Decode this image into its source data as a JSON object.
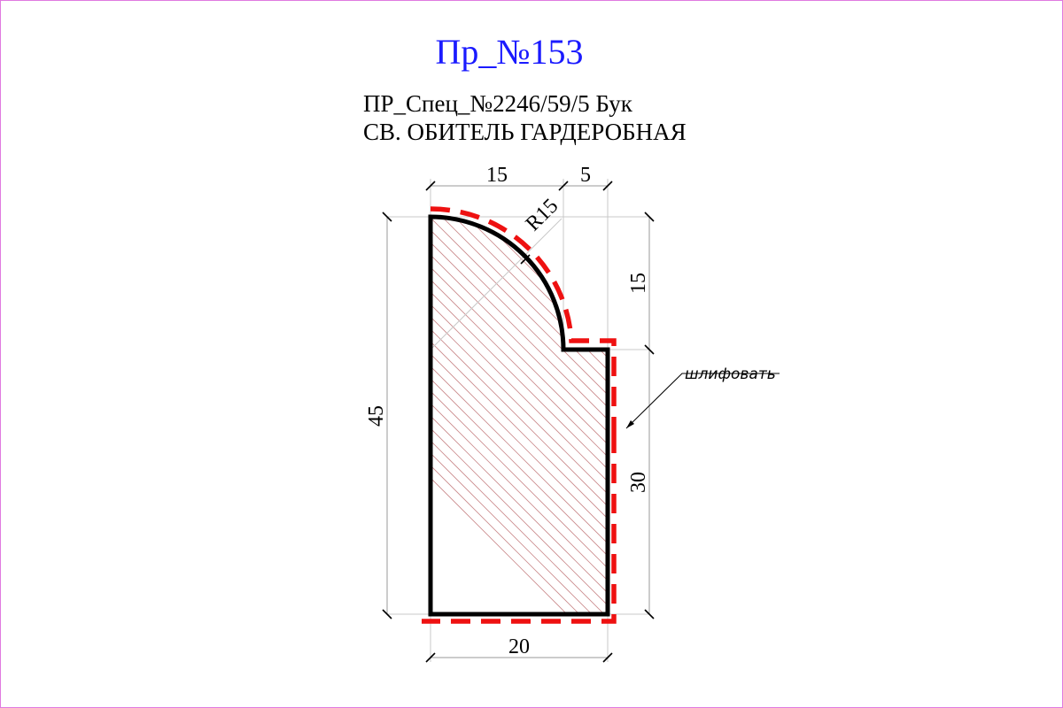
{
  "title": "Пр_№153",
  "subtitle_line1": "ПР_Спец_№2246/59/5 Бук",
  "subtitle_line2": "СВ. ОБИТЕЛЬ ГАРДЕРОБНАЯ",
  "dimensions": {
    "top_left_width": "15",
    "top_right_width": "5",
    "radius": "R15",
    "right_upper_height": "15",
    "right_lower_height": "30",
    "left_height": "45",
    "bottom_width": "20"
  },
  "note": "шлифовать",
  "colors": {
    "title": "#1a1aff",
    "sanding_line": "#ee1111",
    "hatch": "#c9888a",
    "frame": "#e07ae0"
  }
}
